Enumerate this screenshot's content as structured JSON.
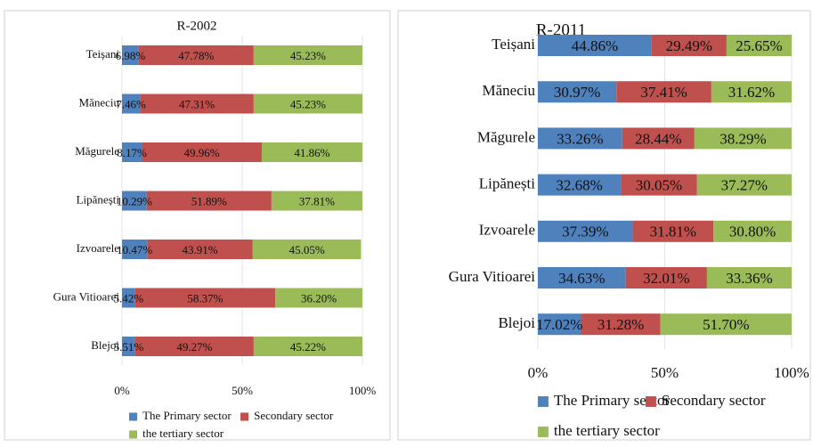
{
  "chart_data": [
    {
      "type": "bar",
      "orientation": "horizontal",
      "stacked": true,
      "title": "R-2002",
      "categories": [
        "Teișani",
        "Măneciu",
        "Măgurele",
        "Lipănești",
        "Izvoarele",
        "Gura Vitioarei",
        "Blejoi"
      ],
      "series": [
        {
          "name": "The Primary sector",
          "color": "#4f81bd",
          "values": [
            6.98,
            7.46,
            8.17,
            10.29,
            10.47,
            5.42,
            5.51
          ],
          "value_labels": [
            "6.98%",
            "7.46%",
            "8.17%",
            "10.29%",
            "10.47%",
            "5.42%",
            "5.51%"
          ]
        },
        {
          "name": "Secondary sector",
          "color": "#c0504d",
          "values": [
            47.78,
            47.31,
            49.96,
            51.89,
            43.91,
            58.37,
            49.27
          ],
          "value_labels": [
            "47.78%",
            "47.31%",
            "49.96%",
            "51.89%",
            "43.91%",
            "58.37%",
            "49.27%"
          ]
        },
        {
          "name": "the tertiary sector",
          "color": "#9bbb59",
          "values": [
            45.23,
            45.23,
            41.86,
            37.81,
            45.05,
            36.2,
            45.22
          ],
          "value_labels": [
            "45.23%",
            "45.23%",
            "41.86%",
            "37.81%",
            "45.05%",
            "36.20%",
            "45.22%"
          ]
        }
      ],
      "xlim": [
        0,
        100
      ],
      "xticks": [
        {
          "value": 0,
          "label": "0%"
        },
        {
          "value": 50,
          "label": "50%"
        },
        {
          "value": 100,
          "label": "100%"
        }
      ],
      "grid": true,
      "legend": "bottom"
    },
    {
      "type": "bar",
      "orientation": "horizontal",
      "stacked": true,
      "title": "R-2011",
      "categories": [
        "Teișani",
        "Măneciu",
        "Măgurele",
        "Lipănești",
        "Izvoarele",
        "Gura Vitioarei",
        "Blejoi"
      ],
      "series": [
        {
          "name": "The Primary sector",
          "color": "#4f81bd",
          "values": [
            44.86,
            30.97,
            33.26,
            32.68,
            37.39,
            34.63,
            17.02
          ],
          "value_labels": [
            "44.86%",
            "30.97%",
            "33.26%",
            "32.68%",
            "37.39%",
            "34.63%",
            "17.02%"
          ]
        },
        {
          "name": "Secondary sector",
          "color": "#c0504d",
          "values": [
            29.49,
            37.41,
            28.44,
            30.05,
            31.81,
            32.01,
            31.28
          ],
          "value_labels": [
            "29.49%",
            "37.41%",
            "28.44%",
            "30.05%",
            "31.81%",
            "32.01%",
            "31.28%"
          ]
        },
        {
          "name": "the tertiary sector",
          "color": "#9bbb59",
          "values": [
            25.65,
            31.62,
            38.29,
            37.27,
            30.8,
            33.36,
            51.7
          ],
          "value_labels": [
            "25.65%",
            "31.62%",
            "38.29%",
            "37.27%",
            "30.80%",
            "33.36%",
            "51.70%"
          ]
        }
      ],
      "xlim": [
        0,
        100
      ],
      "xticks": [
        {
          "value": 0,
          "label": "0%"
        },
        {
          "value": 50,
          "label": "50%"
        },
        {
          "value": 100,
          "label": "100%"
        }
      ],
      "grid": true,
      "legend": "bottom"
    }
  ]
}
